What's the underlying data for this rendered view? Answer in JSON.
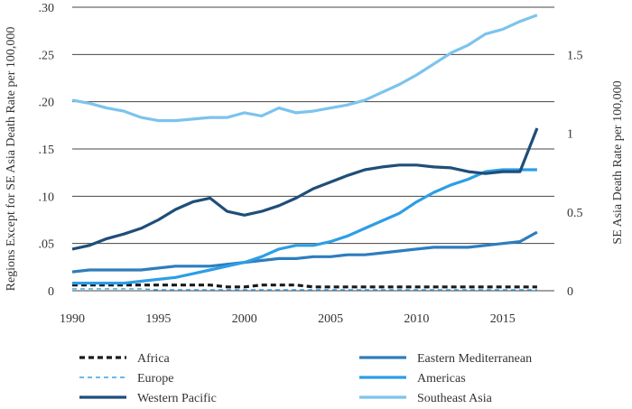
{
  "chart_data": {
    "type": "line",
    "x": [
      1990,
      1991,
      1992,
      1993,
      1994,
      1995,
      1996,
      1997,
      1998,
      1999,
      2000,
      2001,
      2002,
      2003,
      2004,
      2005,
      2006,
      2007,
      2008,
      2009,
      2010,
      2011,
      2012,
      2013,
      2014,
      2015,
      2016,
      2017
    ],
    "xlim": [
      1990,
      2018
    ],
    "xticks": [
      "1990",
      "1995",
      "2000",
      "2005",
      "2010",
      "2015"
    ],
    "ylabel_left": "Regions Except for SE Asia Death Rate per 100,000",
    "ylabel_right": "SE Asia Death Rate per 100,000",
    "ylim_left": [
      0,
      0.3
    ],
    "ylim_right": [
      0,
      1.8
    ],
    "yticks_left": [
      "0",
      ".05",
      ".10",
      ".15",
      ".20",
      ".25",
      ".30"
    ],
    "yticks_right": [
      "0",
      "0.5",
      "1",
      "1.5"
    ],
    "grid": "horizontal",
    "legend_position": "bottom",
    "series": [
      {
        "name": "Africa",
        "axis": "left",
        "color": "#1a1a1a",
        "dash": "dashed",
        "values": [
          0.006,
          0.006,
          0.006,
          0.006,
          0.006,
          0.006,
          0.006,
          0.006,
          0.006,
          0.004,
          0.004,
          0.006,
          0.006,
          0.006,
          0.004,
          0.004,
          0.004,
          0.004,
          0.004,
          0.004,
          0.004,
          0.004,
          0.004,
          0.004,
          0.004,
          0.004,
          0.004,
          0.004
        ]
      },
      {
        "name": "Eastern Mediterranean",
        "axis": "left",
        "color": "#2e7dbd",
        "dash": "solid",
        "values": [
          0.02,
          0.022,
          0.022,
          0.022,
          0.022,
          0.024,
          0.026,
          0.026,
          0.026,
          0.028,
          0.03,
          0.032,
          0.034,
          0.034,
          0.036,
          0.036,
          0.038,
          0.038,
          0.04,
          0.042,
          0.044,
          0.046,
          0.046,
          0.046,
          0.048,
          0.05,
          0.052,
          0.062
        ]
      },
      {
        "name": "Europe",
        "axis": "left",
        "color": "#3aa0e0",
        "dash": "dashed",
        "values": [
          0.002,
          0.002,
          0.002,
          0.002,
          0.002,
          0.001,
          0.001,
          0.001,
          0.001,
          0.001,
          0.001,
          0.001,
          0.001,
          0.001,
          0.001,
          0.001,
          0.001,
          0.001,
          0.001,
          0.001,
          0.001,
          0.001,
          0.001,
          0.001,
          0.001,
          0.001,
          0.001,
          0.001
        ]
      },
      {
        "name": "Americas",
        "axis": "left",
        "color": "#2d9ee6",
        "dash": "solid",
        "values": [
          0.008,
          0.008,
          0.008,
          0.008,
          0.01,
          0.012,
          0.014,
          0.018,
          0.022,
          0.026,
          0.03,
          0.036,
          0.044,
          0.048,
          0.048,
          0.052,
          0.058,
          0.066,
          0.074,
          0.082,
          0.094,
          0.104,
          0.112,
          0.118,
          0.126,
          0.128,
          0.128,
          0.128
        ]
      },
      {
        "name": "Western Pacific",
        "axis": "left",
        "color": "#1f4e79",
        "dash": "solid",
        "values": [
          0.044,
          0.048,
          0.055,
          0.06,
          0.066,
          0.075,
          0.086,
          0.094,
          0.098,
          0.084,
          0.08,
          0.084,
          0.09,
          0.098,
          0.108,
          0.115,
          0.122,
          0.128,
          0.131,
          0.133,
          0.133,
          0.131,
          0.13,
          0.126,
          0.124,
          0.126,
          0.126,
          0.172
        ]
      },
      {
        "name": "Southeast Asia",
        "axis": "right",
        "color": "#7cc3ee",
        "dash": "solid",
        "values": [
          1.21,
          1.19,
          1.16,
          1.14,
          1.1,
          1.08,
          1.08,
          1.09,
          1.1,
          1.1,
          1.13,
          1.11,
          1.16,
          1.13,
          1.14,
          1.16,
          1.18,
          1.21,
          1.26,
          1.31,
          1.37,
          1.44,
          1.51,
          1.56,
          1.63,
          1.66,
          1.71,
          1.75
        ]
      }
    ]
  }
}
